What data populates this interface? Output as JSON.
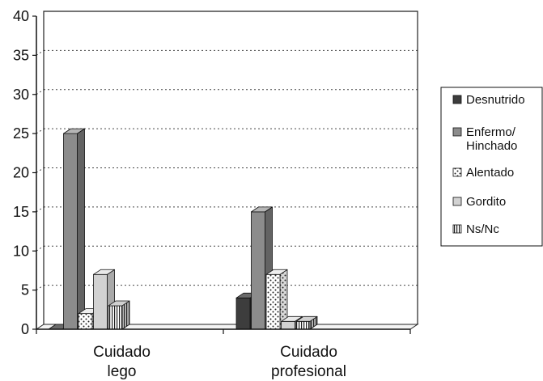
{
  "chart_data": {
    "type": "bar",
    "style": "3d-clustered-column",
    "title": "",
    "xlabel": "",
    "ylabel": "",
    "ylim": [
      0,
      40
    ],
    "yticks": [
      0,
      5,
      10,
      15,
      20,
      25,
      30,
      35,
      40
    ],
    "grid": "dotted horizontal",
    "legend_position": "right",
    "categories": [
      {
        "lines": [
          "Cuidado",
          "lego"
        ]
      },
      {
        "lines": [
          "Cuidado",
          "profesional"
        ]
      }
    ],
    "series": [
      {
        "name": "Desnutrido",
        "legend_lines": [
          "Desnutrido"
        ],
        "pattern": "dark",
        "values": [
          0,
          4
        ]
      },
      {
        "name": "Enfermo/ Hinchado",
        "legend_lines": [
          "Enfermo/",
          "Hinchado"
        ],
        "pattern": "gray",
        "values": [
          25,
          15
        ]
      },
      {
        "name": "Alentado",
        "legend_lines": [
          "Alentado"
        ],
        "pattern": "dots",
        "values": [
          2,
          7
        ]
      },
      {
        "name": "Gordito",
        "legend_lines": [
          "Gordito"
        ],
        "pattern": "light",
        "values": [
          7,
          1
        ]
      },
      {
        "name": "Ns/Nc",
        "legend_lines": [
          "Ns/Nc"
        ],
        "pattern": "vlines",
        "values": [
          3,
          1
        ]
      }
    ]
  }
}
